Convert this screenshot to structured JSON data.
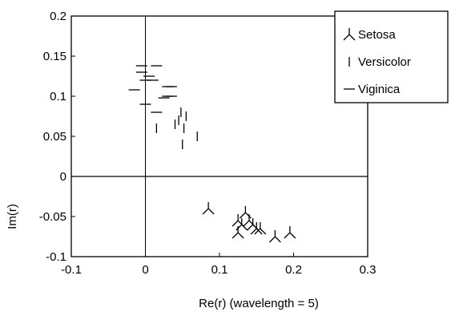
{
  "chart_data": {
    "type": "scatter",
    "xlabel": "Re(r) (wavelength = 5)",
    "ylabel": "Im(r)",
    "xlim": [
      -0.1,
      0.3
    ],
    "ylim": [
      -0.1,
      0.2
    ],
    "x_ticks": [
      -0.1,
      0,
      0.1,
      0.2,
      0.3
    ],
    "y_ticks": [
      -0.1,
      -0.05,
      0,
      0.05,
      0.1,
      0.15,
      0.2
    ],
    "x_tick_labels": [
      "-0.1",
      "0",
      "0.1",
      "0.2",
      "0.3"
    ],
    "y_tick_labels": [
      "-0.1",
      "-0.05",
      "0",
      "0.05",
      "0.1",
      "0.15",
      "0.2"
    ],
    "grid": false,
    "reference_lines": [
      "x = 0",
      "y = 0"
    ],
    "legend_position": "top-right",
    "series": [
      {
        "name": "Setosa",
        "marker": "tri-down",
        "x": [
          0.085,
          0.125,
          0.13,
          0.135,
          0.14,
          0.145,
          0.15,
          0.155,
          0.175,
          0.195,
          0.125
        ],
        "y": [
          -0.04,
          -0.055,
          -0.06,
          -0.045,
          -0.055,
          -0.06,
          -0.065,
          -0.065,
          -0.075,
          -0.07,
          -0.07
        ]
      },
      {
        "name": "Versicolor",
        "marker": "vline",
        "x": [
          0.015,
          0.04,
          0.045,
          0.048,
          0.05,
          0.052,
          0.055,
          0.07
        ],
        "y": [
          0.06,
          0.065,
          0.07,
          0.08,
          0.04,
          0.06,
          0.075,
          0.05
        ]
      },
      {
        "name": "Viginica",
        "marker": "hline",
        "x": [
          -0.015,
          -0.005,
          -0.005,
          0.0,
          0.0,
          0.005,
          0.01,
          0.015,
          0.015,
          0.025,
          0.03,
          0.035,
          0.035,
          0.03
        ],
        "y": [
          0.108,
          0.138,
          0.13,
          0.12,
          0.09,
          0.125,
          0.12,
          0.138,
          0.08,
          0.098,
          0.1,
          0.1,
          0.112,
          0.112
        ]
      }
    ]
  }
}
